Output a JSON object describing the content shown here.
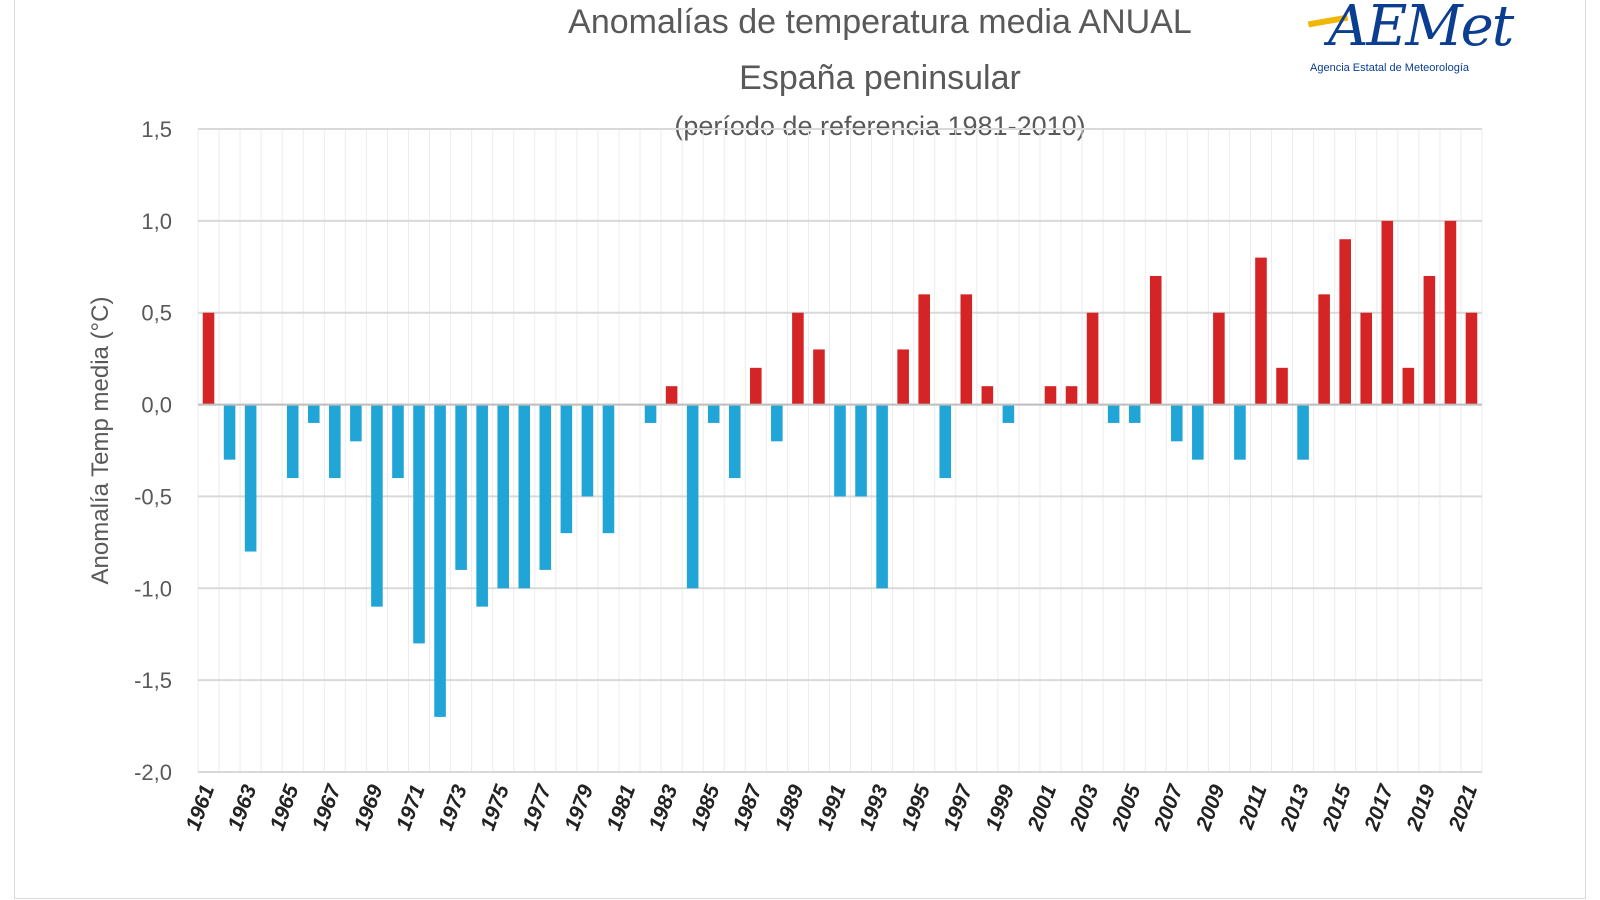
{
  "logo": {
    "name": "AEMet",
    "caption": "Agencia Estatal de Meteorología"
  },
  "colors": {
    "positive": "#d42426",
    "negative": "#21a5d6",
    "grid": "#d9d9d9",
    "text": "#595959"
  },
  "chart_data": {
    "type": "bar",
    "title": "Anomalías de temperatura media ANUAL",
    "subtitle": "España peninsular",
    "subtitle2": "(período de referencia 1981-2010)",
    "xlabel": "",
    "ylabel": "Anomalía Temp media (°C)",
    "ylim": [
      -2.0,
      1.5
    ],
    "yticks": [
      1.5,
      1.0,
      0.5,
      0.0,
      -0.5,
      -1.0,
      -1.5,
      -2.0
    ],
    "ytick_labels": [
      "1,5",
      "1,0",
      "0,5",
      "0,0",
      "-0,5",
      "-1,0",
      "-1,5",
      "-2,0"
    ],
    "grid": true,
    "categories": [
      "1961",
      "1962",
      "1963",
      "1964",
      "1965",
      "1966",
      "1967",
      "1968",
      "1969",
      "1970",
      "1971",
      "1972",
      "1973",
      "1974",
      "1975",
      "1976",
      "1977",
      "1978",
      "1979",
      "1980",
      "1981",
      "1982",
      "1983",
      "1984",
      "1985",
      "1986",
      "1987",
      "1988",
      "1989",
      "1990",
      "1991",
      "1992",
      "1993",
      "1994",
      "1995",
      "1996",
      "1997",
      "1998",
      "1999",
      "2000",
      "2001",
      "2002",
      "2003",
      "2004",
      "2005",
      "2006",
      "2007",
      "2008",
      "2009",
      "2010",
      "2011",
      "2012",
      "2013",
      "2014",
      "2015",
      "2016",
      "2017",
      "2018",
      "2019",
      "2020",
      "2021"
    ],
    "xtick_labels": [
      "1961",
      "1963",
      "1965",
      "1967",
      "1969",
      "1971",
      "1973",
      "1975",
      "1977",
      "1979",
      "1981",
      "1983",
      "1985",
      "1987",
      "1989",
      "1991",
      "1993",
      "1995",
      "1997",
      "1999",
      "2001",
      "2003",
      "2005",
      "2007",
      "2009",
      "2011",
      "2013",
      "2015",
      "2017",
      "2019",
      "2021"
    ],
    "values": [
      0.5,
      -0.3,
      -0.8,
      0.0,
      -0.4,
      -0.1,
      -0.4,
      -0.2,
      -1.1,
      -0.4,
      -1.3,
      -1.7,
      -0.9,
      -1.1,
      -1.0,
      -1.0,
      -0.9,
      -0.7,
      -0.5,
      -0.7,
      0.0,
      -0.1,
      0.1,
      -1.0,
      -0.1,
      -0.4,
      0.2,
      -0.2,
      0.5,
      0.3,
      -0.5,
      -0.5,
      -1.0,
      0.3,
      0.6,
      -0.4,
      0.6,
      0.1,
      -0.1,
      0.0,
      0.1,
      0.1,
      0.5,
      -0.1,
      -0.1,
      0.7,
      -0.2,
      -0.3,
      0.5,
      -0.3,
      0.8,
      0.2,
      -0.3,
      0.6,
      0.9,
      0.5,
      1.0,
      0.2,
      0.7,
      1.0,
      0.5
    ]
  }
}
